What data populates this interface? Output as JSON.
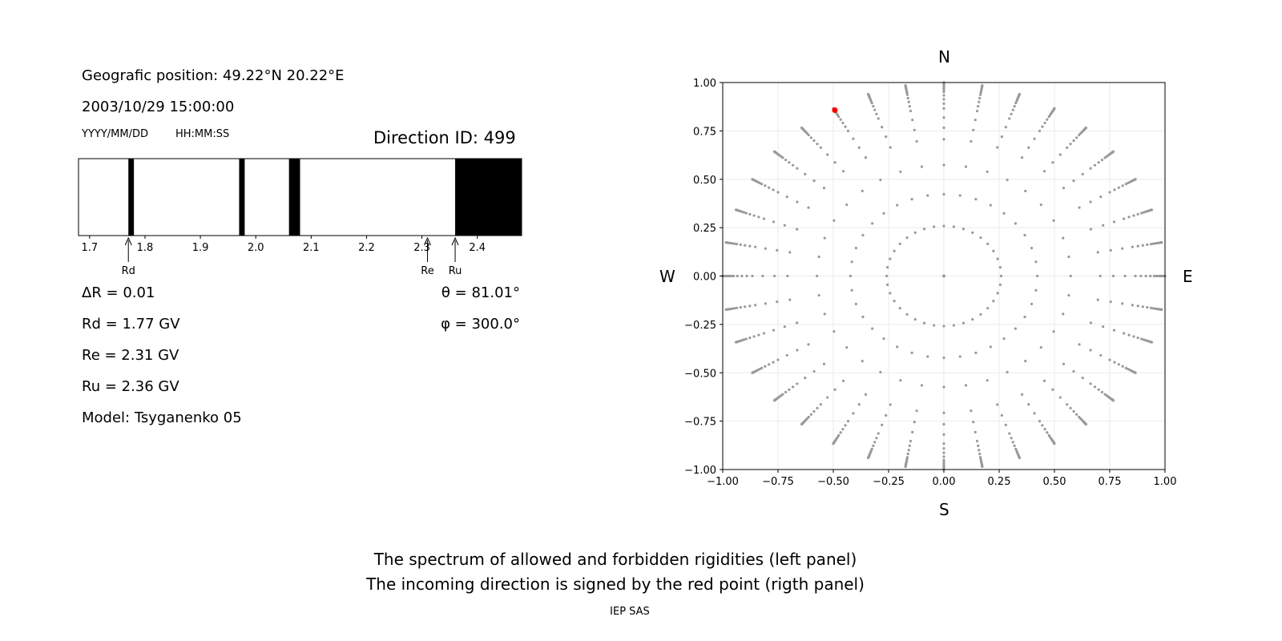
{
  "header": {
    "position": "Geografic position: 49.22°N 20.22°E",
    "datetime": "2003/10/29 15:00:00",
    "date_format": "YYYY/MM/DD",
    "time_format": "HH:MM:SS",
    "direction_id": "Direction ID: 499"
  },
  "params": {
    "delta_r": "ΔR = 0.01",
    "rd": "Rd = 1.77 GV",
    "re": "Re = 2.31 GV",
    "ru": "Ru = 2.36 GV",
    "model": "Model: Tsyganenko 05",
    "theta": "θ = 81.01°",
    "phi": "φ = 300.0°"
  },
  "compass": {
    "n": "N",
    "s": "S",
    "w": "W",
    "e": "E"
  },
  "footer": {
    "line1": "The spectrum of allowed and forbidden rigidities (left panel)",
    "line2": "The incoming direction is signed by the red point (rigth panel)",
    "credit": "IEP SAS"
  },
  "chart_data": [
    {
      "type": "bar",
      "xlim": [
        1.68,
        2.48
      ],
      "ticks": [
        1.7,
        1.8,
        1.9,
        2.0,
        2.1,
        2.2,
        2.3,
        2.4
      ],
      "tick_labels": [
        "1.7",
        "1.8",
        "1.9",
        "2.0",
        "2.1",
        "2.2",
        "2.3",
        "2.4"
      ],
      "forbidden_intervals": [
        [
          1.77,
          1.78
        ],
        [
          1.97,
          1.98
        ],
        [
          2.06,
          2.08
        ],
        [
          2.36,
          2.48
        ]
      ],
      "markers": [
        {
          "label": "Rd",
          "value": 1.77
        },
        {
          "label": "Re",
          "value": 2.31
        },
        {
          "label": "Ru",
          "value": 2.36
        }
      ],
      "colors": {
        "forbidden": "#000000",
        "allowed": "#ffffff"
      }
    },
    {
      "type": "scatter",
      "xlim": [
        -1,
        1
      ],
      "ylim": [
        -1,
        1
      ],
      "xticks": [
        -1,
        -0.75,
        -0.5,
        -0.25,
        0,
        0.25,
        0.5,
        0.75,
        1
      ],
      "xtick_labels": [
        "−1.00",
        "−0.75",
        "−0.50",
        "−0.25",
        "0.00",
        "0.25",
        "0.50",
        "0.75",
        "1.00"
      ],
      "yticks": [
        -1,
        -0.75,
        -0.5,
        -0.25,
        0,
        0.25,
        0.5,
        0.75,
        1
      ],
      "ytick_labels": [
        "−1.00",
        "−0.75",
        "−0.50",
        "−0.25",
        "0.00",
        "0.25",
        "0.50",
        "0.75",
        "1.00"
      ],
      "grid": true,
      "grid_pattern": {
        "theta_deg": [
          0,
          15,
          25,
          35,
          45,
          50,
          55,
          60,
          63,
          66,
          69,
          72,
          74,
          76,
          78,
          80,
          82,
          84,
          86,
          88,
          90
        ],
        "azimuth_step_deg": 10
      },
      "highlight": {
        "x": -0.493,
        "y": 0.857,
        "color": "#ff0000"
      },
      "colors": {
        "points": "#999999",
        "highlight": "#ff0000"
      }
    }
  ]
}
